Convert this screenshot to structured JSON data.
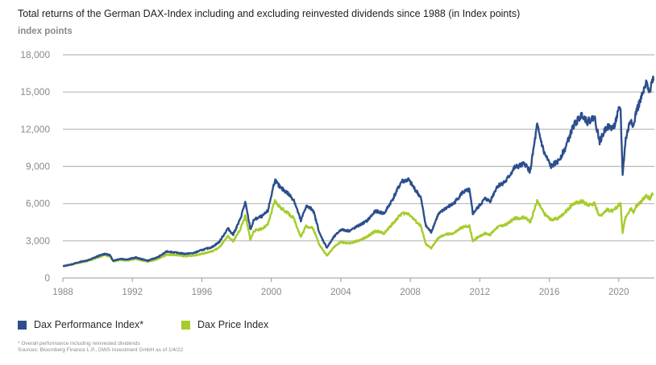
{
  "header": {
    "title": "Total returns of the German DAX-Index including and excluding reinvested dividends since 1988 (in Index points)",
    "unit_label": "index points"
  },
  "footer": {
    "note": "* Overall performance including reinvested dividends",
    "source": "Sources: Bloomberg Finance L.P., DWS Investment GmbH as of 1/4/22"
  },
  "chart_data": {
    "type": "line",
    "title": "Total returns of the German DAX-Index including and excluding reinvested dividends since 1988 (in Index points)",
    "ylabel": "index points",
    "xlabel": "",
    "xlim": [
      1988,
      2022.05
    ],
    "ylim": [
      0,
      18000
    ],
    "grid": true,
    "legend_position": "bottom-left",
    "y_ticks": [
      {
        "value": 0,
        "label": "0"
      },
      {
        "value": 3000,
        "label": "3,000"
      },
      {
        "value": 6000,
        "label": "6,000"
      },
      {
        "value": 9000,
        "label": "9,000"
      },
      {
        "value": 12000,
        "label": "12,000"
      },
      {
        "value": 15000,
        "label": "15,000"
      },
      {
        "value": 18000,
        "label": "18,000"
      }
    ],
    "x_ticks": [
      {
        "value": 1988,
        "label": "1988"
      },
      {
        "value": 1992,
        "label": "1992"
      },
      {
        "value": 1996,
        "label": "1996"
      },
      {
        "value": 2000,
        "label": "2000"
      },
      {
        "value": 2004,
        "label": "2004"
      },
      {
        "value": 2008,
        "label": "2008"
      },
      {
        "value": 2012,
        "label": "2012"
      },
      {
        "value": 2016,
        "label": "2016"
      },
      {
        "value": 2020,
        "label": "2020"
      }
    ],
    "series": [
      {
        "name": "Dax Performance Index*",
        "color": "#2c4f8c",
        "points": [
          [
            1988.0,
            950
          ],
          [
            1988.5,
            1100
          ],
          [
            1989.0,
            1300
          ],
          [
            1989.5,
            1450
          ],
          [
            1990.0,
            1750
          ],
          [
            1990.4,
            1950
          ],
          [
            1990.7,
            1850
          ],
          [
            1990.9,
            1400
          ],
          [
            1991.3,
            1550
          ],
          [
            1991.7,
            1500
          ],
          [
            1992.2,
            1650
          ],
          [
            1992.6,
            1500
          ],
          [
            1992.9,
            1400
          ],
          [
            1993.5,
            1700
          ],
          [
            1994.0,
            2150
          ],
          [
            1994.5,
            2050
          ],
          [
            1995.0,
            1950
          ],
          [
            1995.5,
            2000
          ],
          [
            1996.0,
            2250
          ],
          [
            1996.6,
            2500
          ],
          [
            1997.0,
            2900
          ],
          [
            1997.5,
            4000
          ],
          [
            1997.8,
            3500
          ],
          [
            1998.2,
            4700
          ],
          [
            1998.5,
            6100
          ],
          [
            1998.8,
            3900
          ],
          [
            1999.0,
            4700
          ],
          [
            1999.5,
            5000
          ],
          [
            1999.8,
            5400
          ],
          [
            2000.2,
            7900
          ],
          [
            2000.5,
            7300
          ],
          [
            2000.9,
            6900
          ],
          [
            2001.3,
            6300
          ],
          [
            2001.7,
            4600
          ],
          [
            2002.0,
            5800
          ],
          [
            2002.4,
            5500
          ],
          [
            2002.8,
            3500
          ],
          [
            2003.2,
            2450
          ],
          [
            2003.6,
            3300
          ],
          [
            2004.0,
            3900
          ],
          [
            2004.5,
            3800
          ],
          [
            2005.0,
            4200
          ],
          [
            2005.5,
            4600
          ],
          [
            2006.0,
            5400
          ],
          [
            2006.5,
            5200
          ],
          [
            2007.0,
            6400
          ],
          [
            2007.5,
            7800
          ],
          [
            2007.9,
            7900
          ],
          [
            2008.3,
            7100
          ],
          [
            2008.6,
            6500
          ],
          [
            2008.9,
            4200
          ],
          [
            2009.2,
            3700
          ],
          [
            2009.6,
            5100
          ],
          [
            2010.0,
            5600
          ],
          [
            2010.5,
            6000
          ],
          [
            2011.0,
            6900
          ],
          [
            2011.4,
            7100
          ],
          [
            2011.6,
            5200
          ],
          [
            2011.9,
            5700
          ],
          [
            2012.3,
            6400
          ],
          [
            2012.6,
            6200
          ],
          [
            2013.0,
            7400
          ],
          [
            2013.5,
            7800
          ],
          [
            2014.0,
            8900
          ],
          [
            2014.6,
            9200
          ],
          [
            2014.9,
            8600
          ],
          [
            2015.3,
            12300
          ],
          [
            2015.7,
            10100
          ],
          [
            2016.1,
            9000
          ],
          [
            2016.5,
            9400
          ],
          [
            2016.9,
            10400
          ],
          [
            2017.4,
            12300
          ],
          [
            2017.9,
            13200
          ],
          [
            2018.2,
            12600
          ],
          [
            2018.6,
            13000
          ],
          [
            2018.9,
            11000
          ],
          [
            2019.3,
            12200
          ],
          [
            2019.7,
            12100
          ],
          [
            2020.0,
            13500
          ],
          [
            2020.1,
            13700
          ],
          [
            2020.22,
            8400
          ],
          [
            2020.4,
            11200
          ],
          [
            2020.7,
            12900
          ],
          [
            2020.85,
            12200
          ],
          [
            2021.0,
            13400
          ],
          [
            2021.3,
            14500
          ],
          [
            2021.6,
            15700
          ],
          [
            2021.8,
            15100
          ],
          [
            2021.95,
            16100
          ],
          [
            2022.0,
            15900
          ]
        ]
      },
      {
        "name": "Dax Price Index",
        "color": "#a6cc2c",
        "points": [
          [
            1988.0,
            950
          ],
          [
            1988.5,
            1080
          ],
          [
            1989.0,
            1250
          ],
          [
            1989.5,
            1400
          ],
          [
            1990.0,
            1650
          ],
          [
            1990.4,
            1850
          ],
          [
            1990.7,
            1750
          ],
          [
            1990.9,
            1350
          ],
          [
            1991.3,
            1450
          ],
          [
            1991.7,
            1400
          ],
          [
            1992.2,
            1550
          ],
          [
            1992.6,
            1400
          ],
          [
            1992.9,
            1300
          ],
          [
            1993.5,
            1550
          ],
          [
            1994.0,
            1900
          ],
          [
            1994.5,
            1850
          ],
          [
            1995.0,
            1750
          ],
          [
            1995.5,
            1800
          ],
          [
            1996.0,
            1950
          ],
          [
            1996.6,
            2150
          ],
          [
            1997.0,
            2450
          ],
          [
            1997.5,
            3350
          ],
          [
            1997.8,
            2950
          ],
          [
            1998.2,
            3900
          ],
          [
            1998.5,
            5000
          ],
          [
            1998.8,
            3100
          ],
          [
            1999.0,
            3800
          ],
          [
            1999.5,
            4000
          ],
          [
            1999.8,
            4300
          ],
          [
            2000.2,
            6200
          ],
          [
            2000.5,
            5700
          ],
          [
            2000.9,
            5300
          ],
          [
            2001.3,
            4800
          ],
          [
            2001.7,
            3300
          ],
          [
            2002.0,
            4200
          ],
          [
            2002.4,
            4000
          ],
          [
            2002.8,
            2600
          ],
          [
            2003.2,
            1800
          ],
          [
            2003.6,
            2500
          ],
          [
            2004.0,
            2900
          ],
          [
            2004.5,
            2800
          ],
          [
            2005.0,
            3000
          ],
          [
            2005.5,
            3300
          ],
          [
            2006.0,
            3800
          ],
          [
            2006.5,
            3600
          ],
          [
            2007.0,
            4400
          ],
          [
            2007.5,
            5200
          ],
          [
            2007.9,
            5200
          ],
          [
            2008.3,
            4600
          ],
          [
            2008.6,
            4200
          ],
          [
            2008.9,
            2700
          ],
          [
            2009.2,
            2400
          ],
          [
            2009.6,
            3200
          ],
          [
            2010.0,
            3500
          ],
          [
            2010.5,
            3600
          ],
          [
            2011.0,
            4100
          ],
          [
            2011.4,
            4200
          ],
          [
            2011.6,
            3000
          ],
          [
            2011.9,
            3300
          ],
          [
            2012.3,
            3600
          ],
          [
            2012.6,
            3500
          ],
          [
            2013.0,
            4100
          ],
          [
            2013.5,
            4300
          ],
          [
            2014.0,
            4800
          ],
          [
            2014.6,
            4900
          ],
          [
            2014.9,
            4500
          ],
          [
            2015.3,
            6200
          ],
          [
            2015.7,
            5200
          ],
          [
            2016.1,
            4700
          ],
          [
            2016.5,
            4800
          ],
          [
            2016.9,
            5300
          ],
          [
            2017.4,
            6000
          ],
          [
            2017.9,
            6200
          ],
          [
            2018.2,
            5900
          ],
          [
            2018.6,
            6000
          ],
          [
            2018.9,
            5000
          ],
          [
            2019.3,
            5500
          ],
          [
            2019.7,
            5400
          ],
          [
            2020.0,
            5900
          ],
          [
            2020.1,
            6000
          ],
          [
            2020.22,
            3700
          ],
          [
            2020.4,
            5000
          ],
          [
            2020.7,
            5600
          ],
          [
            2020.85,
            5300
          ],
          [
            2021.0,
            5800
          ],
          [
            2021.3,
            6200
          ],
          [
            2021.6,
            6600
          ],
          [
            2021.8,
            6400
          ],
          [
            2021.95,
            6800
          ],
          [
            2022.0,
            6700
          ]
        ]
      }
    ]
  }
}
